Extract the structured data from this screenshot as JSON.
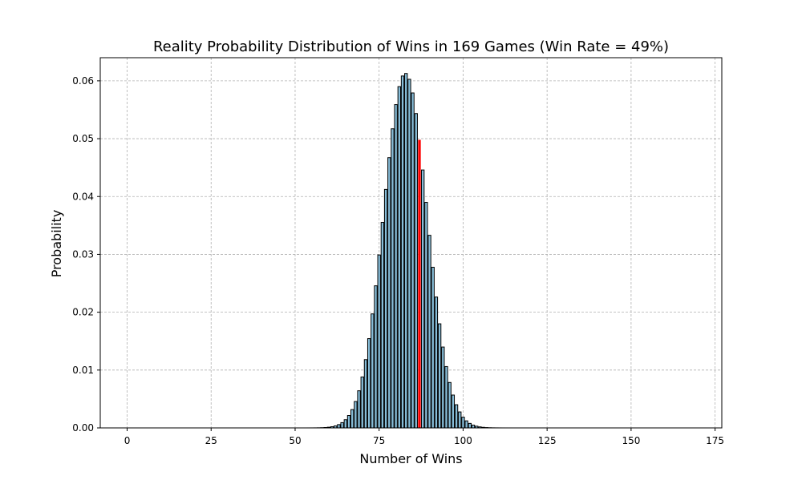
{
  "chart_data": {
    "type": "bar",
    "title": "Reality Probability Distribution of Wins in 169 Games (Win Rate = 49%)",
    "xlabel": "Number of Wins",
    "ylabel": "Probability",
    "n_games": 169,
    "win_rate": 0.49,
    "xlim": [
      -8,
      177
    ],
    "ylim": [
      0,
      0.064
    ],
    "x_ticks": [
      0,
      25,
      50,
      75,
      100,
      125,
      150,
      175
    ],
    "y_ticks": [
      0.0,
      0.01,
      0.02,
      0.03,
      0.04,
      0.05,
      0.06
    ],
    "x_tick_labels": [
      "0",
      "25",
      "50",
      "75",
      "100",
      "125",
      "150",
      "175"
    ],
    "y_tick_labels": [
      "0.00",
      "0.01",
      "0.02",
      "0.03",
      "0.04",
      "0.05",
      "0.06"
    ],
    "grid": true,
    "highlight_x": 87,
    "colors": {
      "bar_fill": "#87bdd8",
      "bar_edge": "#000000",
      "highlight_fill": "#ff0000",
      "grid": "#b0b0b0"
    }
  }
}
